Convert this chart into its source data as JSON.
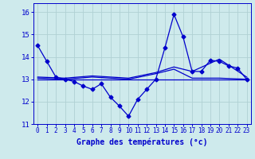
{
  "xlabel": "Graphe des températures (°c)",
  "bg_color": "#ceeaec",
  "line_color": "#0000cc",
  "grid_color": "#b0d0d4",
  "bottom_bar_color": "#ceeaec",
  "xlim": [
    -0.5,
    23.5
  ],
  "ylim": [
    11.0,
    16.4
  ],
  "yticks": [
    11,
    12,
    13,
    14,
    15,
    16
  ],
  "xticks": [
    0,
    1,
    2,
    3,
    4,
    5,
    6,
    7,
    8,
    9,
    10,
    11,
    12,
    13,
    14,
    15,
    16,
    17,
    18,
    19,
    20,
    21,
    22,
    23
  ],
  "series1_x": [
    0,
    1,
    2,
    3,
    4,
    5,
    6,
    7,
    8,
    9,
    10,
    11,
    12,
    13,
    14,
    15,
    16,
    17,
    18,
    19,
    20,
    21,
    22,
    23
  ],
  "series1_y": [
    14.5,
    13.8,
    13.1,
    13.0,
    12.9,
    12.7,
    12.55,
    12.8,
    12.2,
    11.8,
    11.35,
    12.1,
    12.55,
    13.0,
    14.4,
    15.9,
    14.9,
    13.35,
    13.35,
    13.85,
    13.8,
    13.6,
    13.5,
    13.0
  ],
  "series2_x": [
    0,
    3,
    6,
    10,
    13,
    15,
    17,
    20,
    23
  ],
  "series2_y": [
    13.1,
    13.05,
    13.15,
    13.05,
    13.3,
    13.55,
    13.35,
    13.9,
    13.1
  ],
  "series3_x": [
    0,
    3,
    6,
    10,
    13,
    15,
    17,
    20,
    23
  ],
  "series3_y": [
    13.05,
    13.0,
    13.1,
    13.0,
    13.25,
    13.45,
    13.05,
    13.05,
    13.0
  ],
  "series4_x": [
    0,
    23
  ],
  "series4_y": [
    13.0,
    13.0
  ]
}
